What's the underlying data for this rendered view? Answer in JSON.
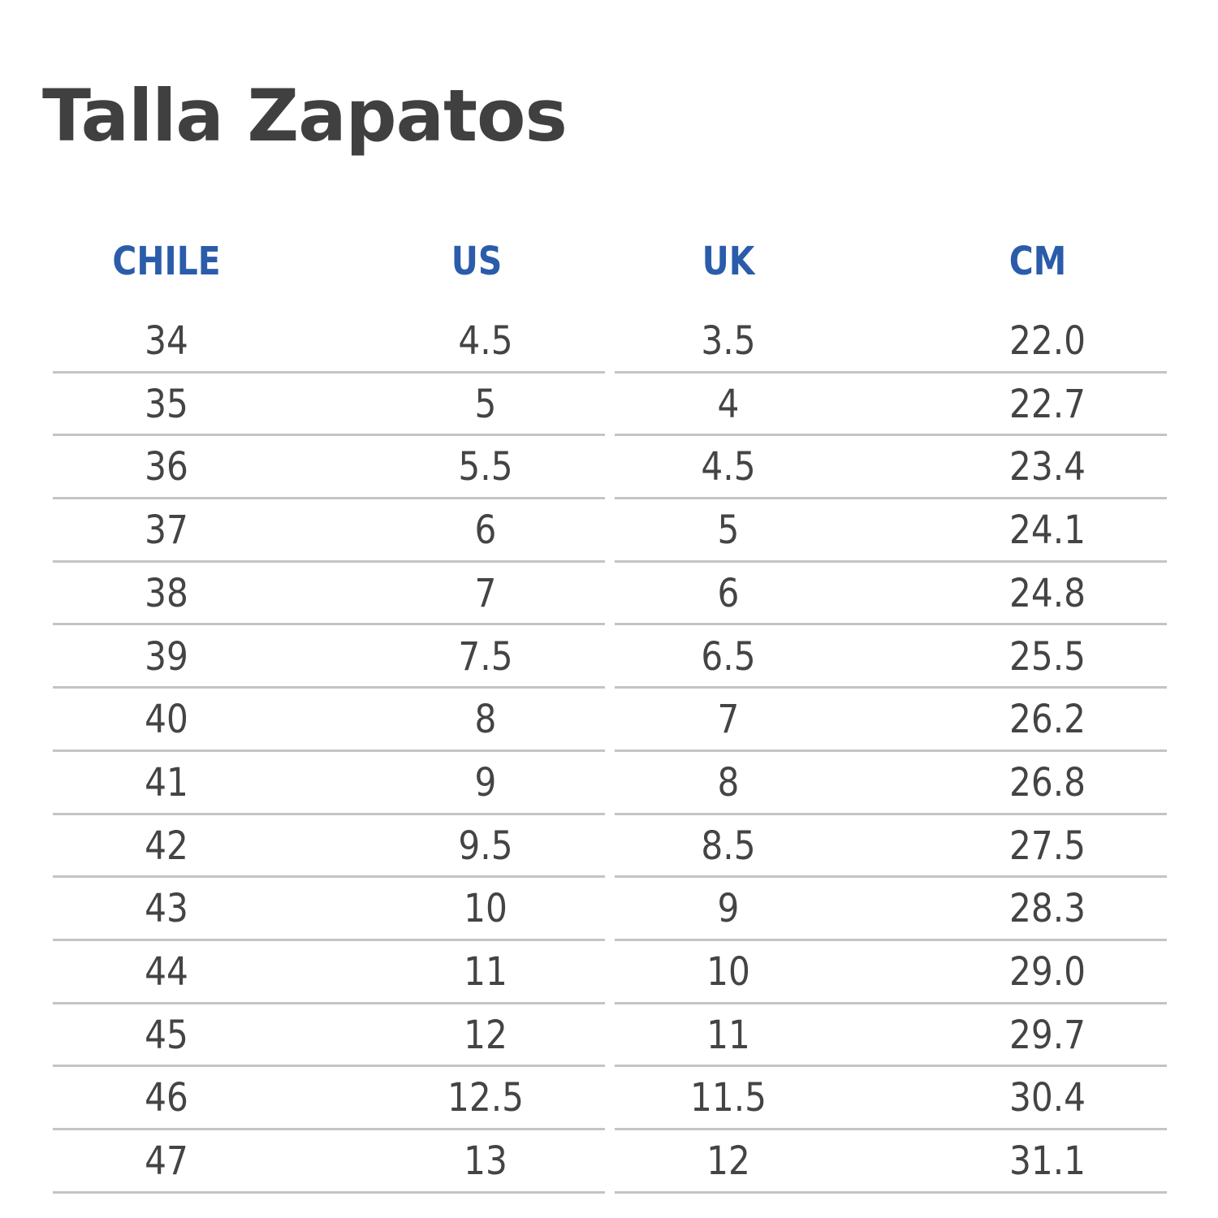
{
  "title": "Talla Zapatos",
  "colors": {
    "header": "#2a5caa",
    "text": "#444444",
    "rule": "#c4c4c4"
  },
  "table": {
    "headers": [
      "CHILE",
      "US",
      "UK",
      "CM"
    ],
    "rows": [
      [
        "34",
        "4.5",
        "3.5",
        "22.0"
      ],
      [
        "35",
        "5",
        "4",
        "22.7"
      ],
      [
        "36",
        "5.5",
        "4.5",
        "23.4"
      ],
      [
        "37",
        "6",
        "5",
        "24.1"
      ],
      [
        "38",
        "7",
        "6",
        "24.8"
      ],
      [
        "39",
        "7.5",
        "6.5",
        "25.5"
      ],
      [
        "40",
        "8",
        "7",
        "26.2"
      ],
      [
        "41",
        "9",
        "8",
        "26.8"
      ],
      [
        "42",
        "9.5",
        "8.5",
        "27.5"
      ],
      [
        "43",
        "10",
        "9",
        "28.3"
      ],
      [
        "44",
        "11",
        "10",
        "29.0"
      ],
      [
        "45",
        "12",
        "11",
        "29.7"
      ],
      [
        "46",
        "12.5",
        "11.5",
        "30.4"
      ],
      [
        "47",
        "13",
        "12",
        "31.1"
      ]
    ]
  }
}
